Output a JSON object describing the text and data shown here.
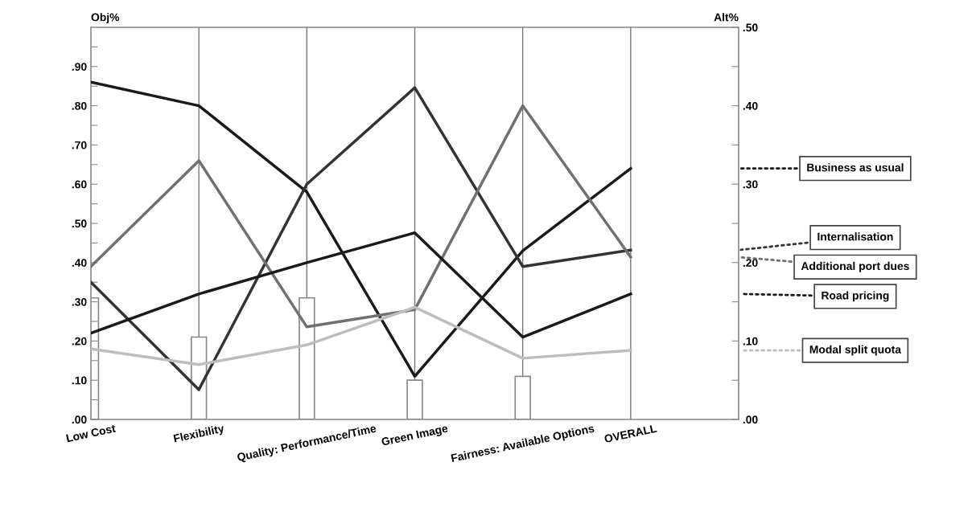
{
  "chart_data": {
    "type": "line",
    "categories": [
      "Low Cost",
      "Flexibility",
      "Quality: Performance/Time",
      "Green Image",
      "Fairness: Available Options",
      "OVERALL"
    ],
    "ylabel": "Obj%",
    "y2label": "Alt%",
    "ylim": [
      0,
      1.0
    ],
    "yticks": [
      {
        "value": 0,
        "label": ".00"
      },
      {
        "value": 0.05,
        "label": null
      },
      {
        "value": 0.1,
        "label": ".10"
      },
      {
        "value": 0.15,
        "label": null
      },
      {
        "value": 0.2,
        "label": ".20"
      },
      {
        "value": 0.25,
        "label": null
      },
      {
        "value": 0.3,
        "label": ".30"
      },
      {
        "value": 0.35,
        "label": null
      },
      {
        "value": 0.4,
        "label": ".40"
      },
      {
        "value": 0.45,
        "label": null
      },
      {
        "value": 0.5,
        "label": ".50"
      },
      {
        "value": 0.55,
        "label": null
      },
      {
        "value": 0.6,
        "label": ".60"
      },
      {
        "value": 0.65,
        "label": null
      },
      {
        "value": 0.7,
        "label": ".70"
      },
      {
        "value": 0.75,
        "label": null
      },
      {
        "value": 0.8,
        "label": ".80"
      },
      {
        "value": 0.85,
        "label": null
      },
      {
        "value": 0.9,
        "label": ".90"
      },
      {
        "value": 0.95,
        "label": null
      }
    ],
    "y2lim": [
      0,
      0.5
    ],
    "y2ticks": [
      {
        "value": 0,
        "label": ".00"
      },
      {
        "value": 0.05,
        "label": null
      },
      {
        "value": 0.1,
        "label": ".10"
      },
      {
        "value": 0.15,
        "label": null
      },
      {
        "value": 0.2,
        "label": ".20"
      },
      {
        "value": 0.25,
        "label": null
      },
      {
        "value": 0.3,
        "label": ".30"
      },
      {
        "value": 0.35,
        "label": null
      },
      {
        "value": 0.4,
        "label": ".40"
      },
      {
        "value": 0.45,
        "label": null
      },
      {
        "value": 0.5,
        "label": ".50"
      }
    ],
    "grid": "x",
    "legend": "right",
    "marker": "none",
    "line_style": "solid",
    "series": [
      {
        "type": "bar",
        "color": "#ffffff",
        "values": [
          0.31,
          0.21,
          0.31,
          0.1,
          0.11,
          null
        ]
      },
      {
        "name": "Business as usual",
        "axis": "y2",
        "color": "#1a1a1a",
        "values": [
          0.43,
          0.4,
          0.29,
          0.055,
          0.215,
          0.32
        ]
      },
      {
        "name": "Internalisation",
        "axis": "y2",
        "color": "#333333",
        "values": [
          0.175,
          0.038,
          0.3,
          0.423,
          0.195,
          0.216
        ]
      },
      {
        "name": "Additional port dues",
        "axis": "y2",
        "color": "#707070",
        "values": [
          0.195,
          0.33,
          0.118,
          0.14,
          0.4,
          0.207
        ]
      },
      {
        "name": "Road pricing",
        "axis": "y2",
        "color": "#1a1a1a",
        "values": [
          0.11,
          0.16,
          0.2,
          0.238,
          0.105,
          0.16
        ]
      },
      {
        "name": "Modal split quota",
        "axis": "y2",
        "color": "#bdbdbd",
        "values": [
          0.09,
          0.07,
          0.095,
          0.143,
          0.078,
          0.088
        ]
      }
    ]
  }
}
